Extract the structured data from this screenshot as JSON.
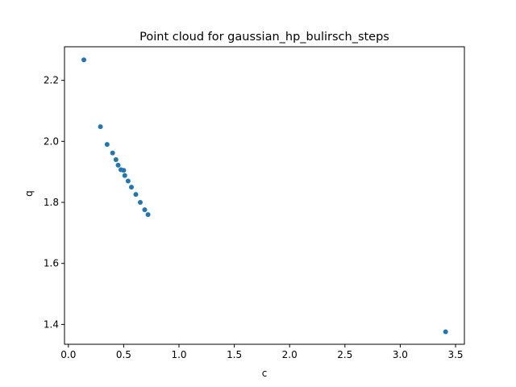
{
  "chart_data": {
    "type": "scatter",
    "title": "Point cloud for gaussian_hp_bulirsch_steps",
    "xlabel": "c",
    "ylabel": "q",
    "xlim": [
      -0.035,
      3.58
    ],
    "ylim": [
      1.335,
      2.31
    ],
    "xticks": [
      0.0,
      0.5,
      1.0,
      1.5,
      2.0,
      2.5,
      3.0,
      3.5
    ],
    "xtick_labels": [
      "0.0",
      "0.5",
      "1.0",
      "1.5",
      "2.0",
      "2.5",
      "3.0",
      "3.5"
    ],
    "yticks": [
      1.4,
      1.6,
      1.8,
      2.0,
      2.2
    ],
    "ytick_labels": [
      "1.4",
      "1.6",
      "1.8",
      "2.0",
      "2.2"
    ],
    "grid": false,
    "marker_color": "#1f77b4",
    "series": [
      {
        "points": [
          {
            "x": 0.14,
            "y": 2.267
          },
          {
            "x": 0.29,
            "y": 2.048
          },
          {
            "x": 0.35,
            "y": 1.99
          },
          {
            "x": 0.4,
            "y": 1.962
          },
          {
            "x": 0.43,
            "y": 1.94
          },
          {
            "x": 0.45,
            "y": 1.922
          },
          {
            "x": 0.475,
            "y": 1.907
          },
          {
            "x": 0.5,
            "y": 1.905
          },
          {
            "x": 0.51,
            "y": 1.888
          },
          {
            "x": 0.54,
            "y": 1.87
          },
          {
            "x": 0.57,
            "y": 1.85
          },
          {
            "x": 0.61,
            "y": 1.826
          },
          {
            "x": 0.65,
            "y": 1.8
          },
          {
            "x": 0.69,
            "y": 1.776
          },
          {
            "x": 0.72,
            "y": 1.76
          },
          {
            "x": 3.41,
            "y": 1.376
          }
        ]
      }
    ]
  }
}
